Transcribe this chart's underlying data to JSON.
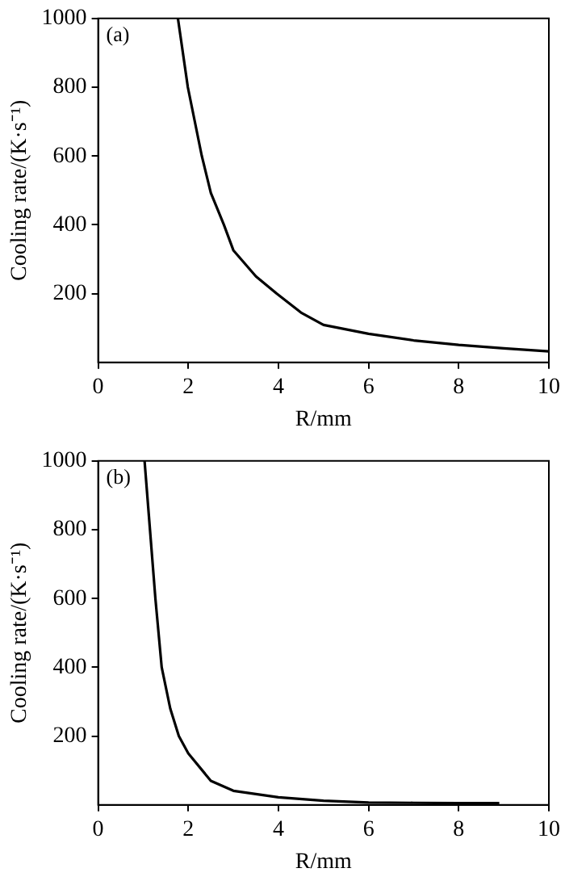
{
  "chart_data": [
    {
      "type": "line",
      "annotations": [
        "(a)"
      ],
      "xlabel": "R/mm",
      "ylabel": "Cooling rate/(K·s⁻¹)",
      "xlim": [
        0,
        10
      ],
      "xticks": [
        0,
        2,
        4,
        6,
        8,
        10
      ],
      "ylim": [
        0,
        1000
      ],
      "yticks": [
        200,
        400,
        600,
        800,
        1000
      ],
      "grid": false,
      "legend": false,
      "marker": "none",
      "line_style": "solid",
      "series": [
        {
          "color": "#000000",
          "x": [
            1.77,
            1.99,
            2.3,
            2.5,
            2.79,
            3,
            3.5,
            3.96,
            4.5,
            5,
            6,
            7,
            8,
            9,
            10
          ],
          "values": [
            1000,
            800,
            600,
            493,
            400,
            326,
            250,
            200,
            145,
            109,
            83,
            64,
            51,
            41,
            32
          ]
        }
      ]
    },
    {
      "type": "line",
      "annotations": [
        "(b)"
      ],
      "xlabel": "R/mm",
      "ylabel": "Cooling rate/(K·s⁻¹)",
      "xlim": [
        0,
        10
      ],
      "xticks": [
        0,
        2,
        4,
        6,
        8,
        10
      ],
      "ylim": [
        0,
        1000
      ],
      "yticks": [
        200,
        400,
        600,
        800,
        1000
      ],
      "grid": false,
      "legend": false,
      "marker": "none",
      "line_style": "solid",
      "series": [
        {
          "color": "#000000",
          "x": [
            1.03,
            1.15,
            1.27,
            1.41,
            1.6,
            1.79,
            2,
            2.5,
            3,
            4,
            5,
            6,
            7,
            8,
            8.9
          ],
          "values": [
            1000,
            800,
            600,
            400,
            280,
            200,
            150,
            70,
            41,
            22,
            12,
            7,
            6,
            5,
            5
          ]
        }
      ]
    }
  ]
}
